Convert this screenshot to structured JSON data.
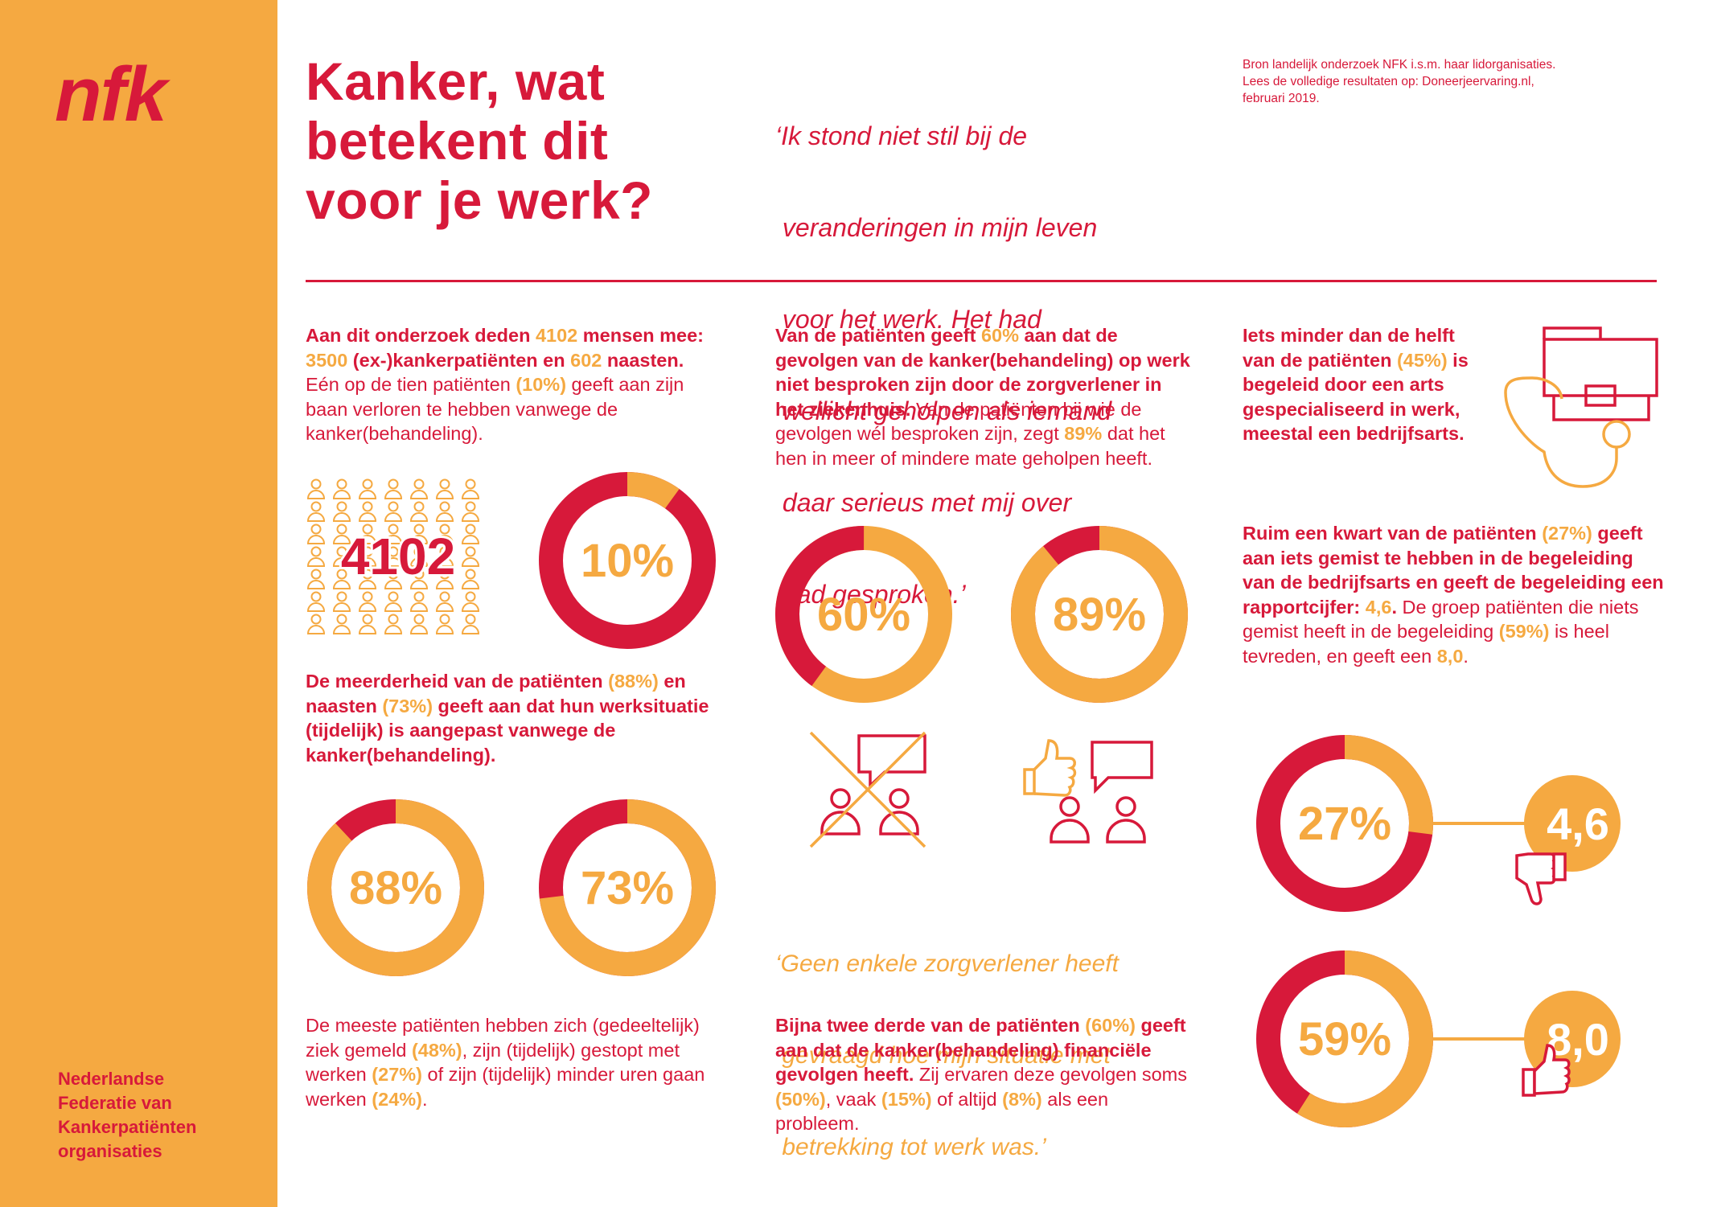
{
  "brand": {
    "logo_text": "nfk",
    "federation_lines": [
      "Nederlandse",
      "Federatie van",
      "Kankerpatiënten",
      "organisaties"
    ],
    "colors": {
      "red": "#d7193a",
      "orange": "#f5a941",
      "white": "#ffffff"
    }
  },
  "header": {
    "title_lines": [
      "Kanker, wat",
      "betekent dit",
      "voor je werk?"
    ],
    "quote_lines": [
      "‘Ik stond niet stil bij de",
      " veranderingen in mijn leven",
      " voor het werk. Het had",
      " wellicht geholpen als iemand",
      " daar serieus met mij over",
      " had gesproken.’"
    ],
    "source_lines": [
      "Bron landelijk onderzoek NFK i.s.m. haar lidorganisaties.",
      "Lees de volledige resultaten op: Doneerjeervaring.nl,",
      "februari 2019."
    ]
  },
  "sections": {
    "participants": {
      "p1": "Aan dit onderzoek deden ",
      "n_total": "4102",
      "p2": " mensen mee: ",
      "n_patients": "3500",
      "p3": " (ex-)kankerpatiënten en ",
      "n_relatives": "602",
      "p4": " naasten.",
      "p5": " Eén op de tien patiënten ",
      "pct_lost": "(10%)",
      "p6": " geeft aan zijn baan verloren te hebben vanwege de kanker(behandeling).",
      "people_number": "4102",
      "donut_label": "10%",
      "donut_value": 10
    },
    "work_adjusted": {
      "p1": "De meerderheid van de patiënten ",
      "pct_patients": "(88%)",
      "p2": " en naasten ",
      "pct_relatives": "(73%)",
      "p3": " geeft aan dat hun werksituatie (tijdelijk) is aangepast vanwege de kanker(behandeling).",
      "donut_patients_label": "88%",
      "donut_patients_value": 88,
      "donut_relatives_label": "73%",
      "donut_relatives_value": 73
    },
    "sick_leave": {
      "p1": "De meeste patiënten hebben zich (gedeeltelijk) ziek gemeld ",
      "pct_sick": "(48%)",
      "p2": ", zijn (tijdelijk) gestopt met werken ",
      "pct_stopped": "(27%)",
      "p3": " of zijn (tijdelijk) minder uren gaan werken ",
      "pct_fewer": "(24%)",
      "p4": "."
    },
    "discussed": {
      "p1": "Van de patiënten geeft ",
      "pct_not": "60%",
      "p2": " aan dat de gevolgen van de kanker(behandeling) op werk niet besproken zijn door de zorgverlener in het ziekenhuis.",
      "p3": " Van de patiënten bij wie de gevolgen wél besproken zijn, zegt ",
      "pct_helped": "89%",
      "p4": " dat het hen in meer of mindere mate geholpen heeft.",
      "donut_not_label": "60%",
      "donut_not_value": 60,
      "donut_helped_label": "89%",
      "donut_helped_value": 89
    },
    "quote_mid_lines": [
      "‘Geen enkele zorgverlener heeft",
      " gevraagd hoe mijn situatie met",
      " betrekking tot werk was.’"
    ],
    "financial": {
      "p1": "Bijna twee derde van de patiënten ",
      "pct": "(60%)",
      "p2": " geeft aan dat de kanker(behandeling) financiële gevolgen heeft.",
      "p3": " Zij ervaren deze gevolgen soms ",
      "pct_sometimes": "(50%)",
      "p4": ", vaak ",
      "pct_often": "(15%)",
      "p5": " of altijd ",
      "pct_always": "(8%)",
      "p6": " als een probleem."
    },
    "company_doctor": {
      "p1": "Iets minder dan de helft van de patiënten ",
      "pct": "(45%)",
      "p2": " is begeleid door een arts gespecialiseerd in werk, meestal een bedrijfsarts."
    },
    "rating": {
      "p1": "Ruim een kwart van de patiënten ",
      "pct_missed": "(27%)",
      "p2": " geeft aan iets gemist te hebben in de begeleiding van de bedrijfsarts en geeft de begeleiding een rapportcijfer: ",
      "grade_low": "4,6",
      "p3": ".",
      "p4": " De groep patiënten die niets gemist heeft in de begeleiding ",
      "pct_satisfied": "(59%)",
      "p5": " is heel tevreden, en geeft een ",
      "grade_high": "8,0",
      "p6": ".",
      "donut_missed_label": "27%",
      "donut_missed_value": 27,
      "donut_satisfied_label": "59%",
      "donut_satisfied_value": 59,
      "badge_low": "4,6",
      "badge_high": "8,0"
    }
  }
}
